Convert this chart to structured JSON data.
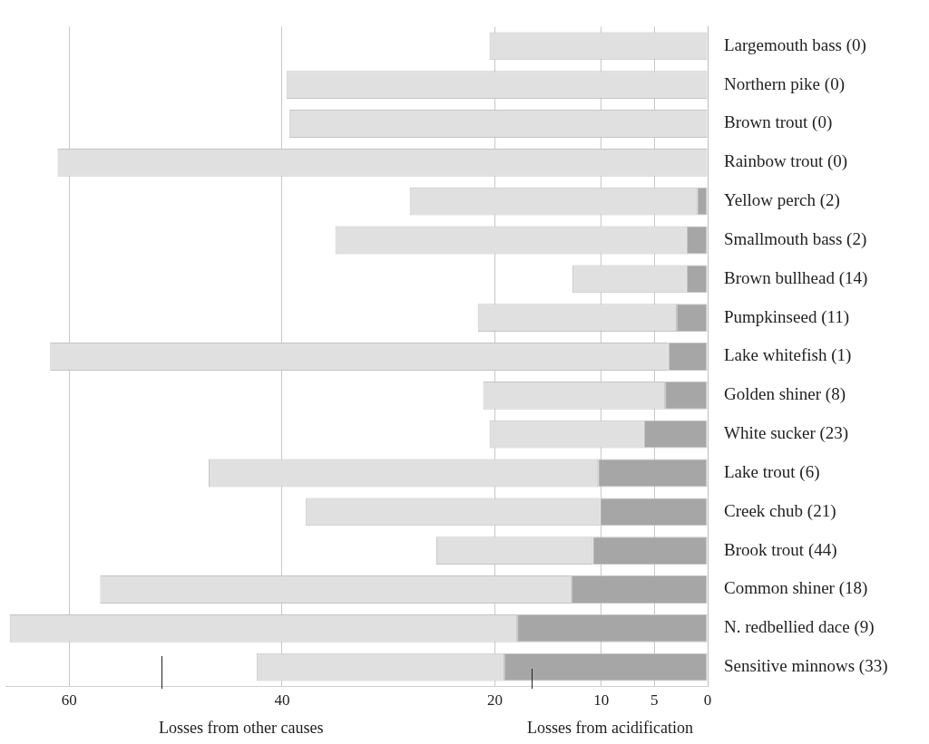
{
  "chart_data": {
    "type": "bar",
    "orientation": "horizontal",
    "stacked": true,
    "categories": [
      "Largemouth bass (0)",
      "Northern pike (0)",
      "Brown trout (0)",
      "Rainbow trout (0)",
      "Yellow perch (2)",
      "Smallmouth bass (2)",
      "Brown bullhead (14)",
      "Pumpkinseed (11)",
      "Lake whitefish (1)",
      "Golden shiner (8)",
      "White sucker (23)",
      "Lake trout (6)",
      "Creek chub (21)",
      "Brook trout (44)",
      "Common shiner (18)",
      "N. redbellied dace (9)",
      "Sensitive minnows (33)"
    ],
    "series": [
      {
        "color": "#a6a6a6",
        "values": [
          0,
          0,
          0,
          0,
          1,
          2,
          2,
          2.9,
          3.7,
          4,
          6,
          10.3,
          10.1,
          10.8,
          12.8,
          17.9,
          19.1
        ]
      },
      {
        "color": "#e0e0e0",
        "values": [
          20.5,
          39.6,
          39.3,
          61.1,
          27,
          33,
          10.7,
          18.7,
          58.1,
          17.1,
          14.5,
          36.6,
          27.7,
          14.7,
          44.3,
          47.7,
          23.3
        ]
      }
    ],
    "xlim": [
      66,
      0
    ],
    "xticks": [
      60,
      40,
      20,
      10,
      5,
      0
    ],
    "grid": "x",
    "annotations": [
      "Losses from other causes",
      "Losses from acidification"
    ]
  }
}
